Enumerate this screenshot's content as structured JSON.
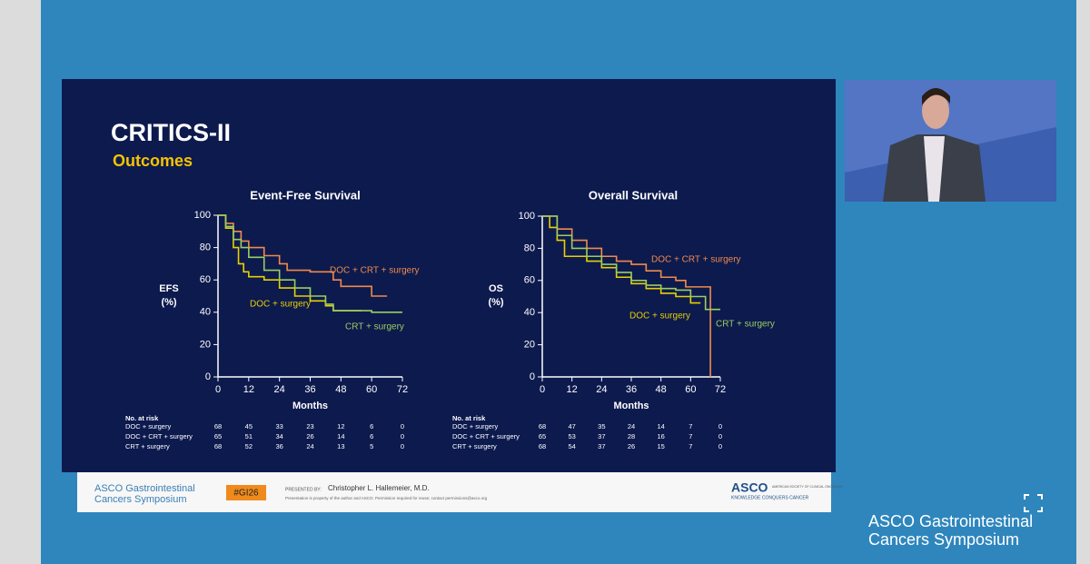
{
  "slide": {
    "title": "CRITICS-II",
    "subtitle": "Outcomes"
  },
  "chart_data": [
    {
      "type": "line",
      "title": "Event-Free Survival",
      "xlabel": "Months",
      "ylabel": [
        "EFS",
        "(%)"
      ],
      "xlim": [
        0,
        72
      ],
      "xticks": [
        0,
        12,
        24,
        36,
        48,
        60,
        72
      ],
      "ylim": [
        0,
        100
      ],
      "yticks": [
        0,
        20,
        40,
        60,
        80,
        100
      ],
      "series": [
        {
          "name": "DOC + surgery",
          "color": "#e8d000",
          "x": [
            0,
            3,
            6,
            8,
            10,
            12,
            18,
            24,
            30,
            36,
            42,
            45,
            50,
            56
          ],
          "values": [
            100,
            92,
            80,
            70,
            65,
            62,
            60,
            55,
            50,
            47,
            44,
            41,
            41,
            41
          ]
        },
        {
          "name": "DOC + CRT + surgery",
          "color": "#f08a4b",
          "x": [
            0,
            3,
            6,
            9,
            12,
            18,
            24,
            27,
            36,
            42,
            45,
            48,
            55,
            60,
            66
          ],
          "values": [
            100,
            95,
            90,
            84,
            80,
            75,
            70,
            66,
            65,
            65,
            60,
            56,
            56,
            50,
            50
          ]
        },
        {
          "name": "CRT + surgery",
          "color": "#9acd60",
          "x": [
            0,
            3,
            6,
            9,
            12,
            18,
            24,
            30,
            36,
            42,
            45,
            50,
            60,
            66,
            72
          ],
          "values": [
            100,
            93,
            85,
            80,
            74,
            66,
            60,
            55,
            50,
            45,
            41,
            41,
            40,
            40,
            40
          ]
        }
      ],
      "risk_table": {
        "title": "No. at risk",
        "rows": [
          {
            "name": "DOC + surgery",
            "values": [
              68,
              45,
              33,
              23,
              12,
              6,
              0
            ]
          },
          {
            "name": "DOC + CRT + surgery",
            "values": [
              65,
              51,
              34,
              26,
              14,
              6,
              0
            ]
          },
          {
            "name": "CRT + surgery",
            "values": [
              68,
              52,
              36,
              24,
              13,
              5,
              0
            ]
          }
        ]
      }
    },
    {
      "type": "line",
      "title": "Overall Survival",
      "xlabel": "Months",
      "ylabel": [
        "OS",
        "(%)"
      ],
      "xlim": [
        0,
        72
      ],
      "xticks": [
        0,
        12,
        24,
        36,
        48,
        60,
        72
      ],
      "ylim": [
        0,
        100
      ],
      "yticks": [
        0,
        20,
        40,
        60,
        80,
        100
      ],
      "series": [
        {
          "name": "DOC + surgery",
          "color": "#e8d000",
          "x": [
            0,
            3,
            6,
            9,
            18,
            24,
            30,
            36,
            42,
            48,
            54,
            60,
            64
          ],
          "values": [
            100,
            93,
            85,
            75,
            72,
            68,
            62,
            58,
            55,
            52,
            50,
            46,
            46
          ]
        },
        {
          "name": "DOC + CRT + surgery",
          "color": "#f08a4b",
          "x": [
            0,
            6,
            12,
            18,
            24,
            30,
            36,
            42,
            48,
            54,
            58,
            68,
            68
          ],
          "values": [
            100,
            92,
            85,
            80,
            75,
            72,
            70,
            66,
            62,
            60,
            56,
            56,
            0
          ]
        },
        {
          "name": "CRT + surgery",
          "color": "#9acd60",
          "x": [
            0,
            6,
            12,
            18,
            24,
            30,
            36,
            42,
            48,
            54,
            60,
            66,
            72
          ],
          "values": [
            100,
            88,
            80,
            75,
            70,
            65,
            60,
            57,
            55,
            54,
            50,
            42,
            42
          ]
        }
      ],
      "risk_table": {
        "title": "No. at risk",
        "rows": [
          {
            "name": "DOC + surgery",
            "values": [
              68,
              47,
              35,
              24,
              14,
              7,
              0
            ]
          },
          {
            "name": "DOC + CRT + surgery",
            "values": [
              65,
              53,
              37,
              28,
              16,
              7,
              0
            ]
          },
          {
            "name": "CRT + surgery",
            "values": [
              68,
              54,
              37,
              26,
              15,
              7,
              0
            ]
          }
        ]
      }
    }
  ],
  "footer": {
    "logo": [
      "ASCO Gastrointestinal",
      "Cancers Symposium"
    ],
    "hashtag": "#GI26",
    "presented_by": "PRESENTED BY:",
    "presenter": "Christopher L. Hallemeier, M.D.",
    "notice": "Presentation is property of the author and ASCO. Permission required for reuse; contact permissions@asco.org",
    "asco": "ASCO",
    "society": "AMERICAN SOCIETY OF CLINICAL ONCOLOGY",
    "tagline": "KNOWLEDGE CONQUERS CANCER"
  },
  "corner_logo": [
    "ASCO Gastrointestinal",
    "Cancers Symposium"
  ]
}
